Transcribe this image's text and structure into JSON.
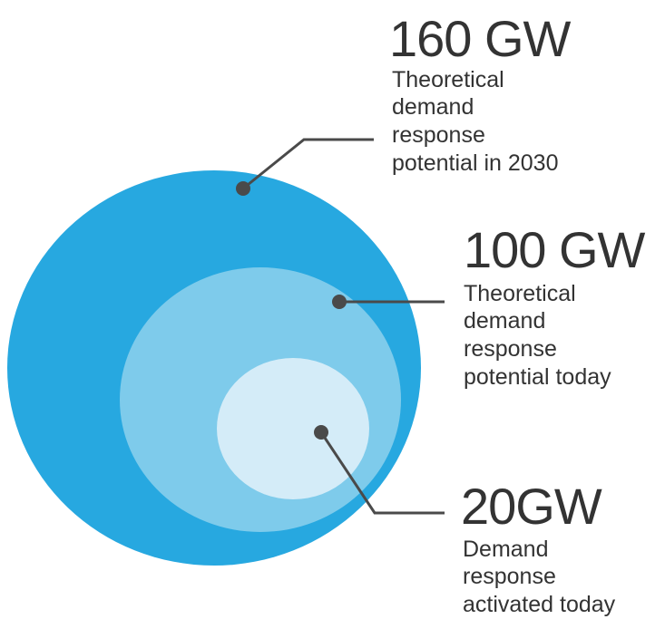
{
  "colors": {
    "outer": "#27a8e0",
    "middle": "#7ecbeb",
    "inner": "#d4ecf8",
    "leader": "#4a4a4a",
    "text": "#333333"
  },
  "items": [
    {
      "value": "160 GW",
      "description": [
        "Theoretical",
        "demand",
        "response",
        "potential in 2030"
      ]
    },
    {
      "value": "100 GW",
      "description": [
        "Theoretical",
        "demand",
        "response",
        "potential today"
      ]
    },
    {
      "value": "20GW",
      "description": [
        "Demand",
        "response",
        "activated today"
      ]
    }
  ]
}
